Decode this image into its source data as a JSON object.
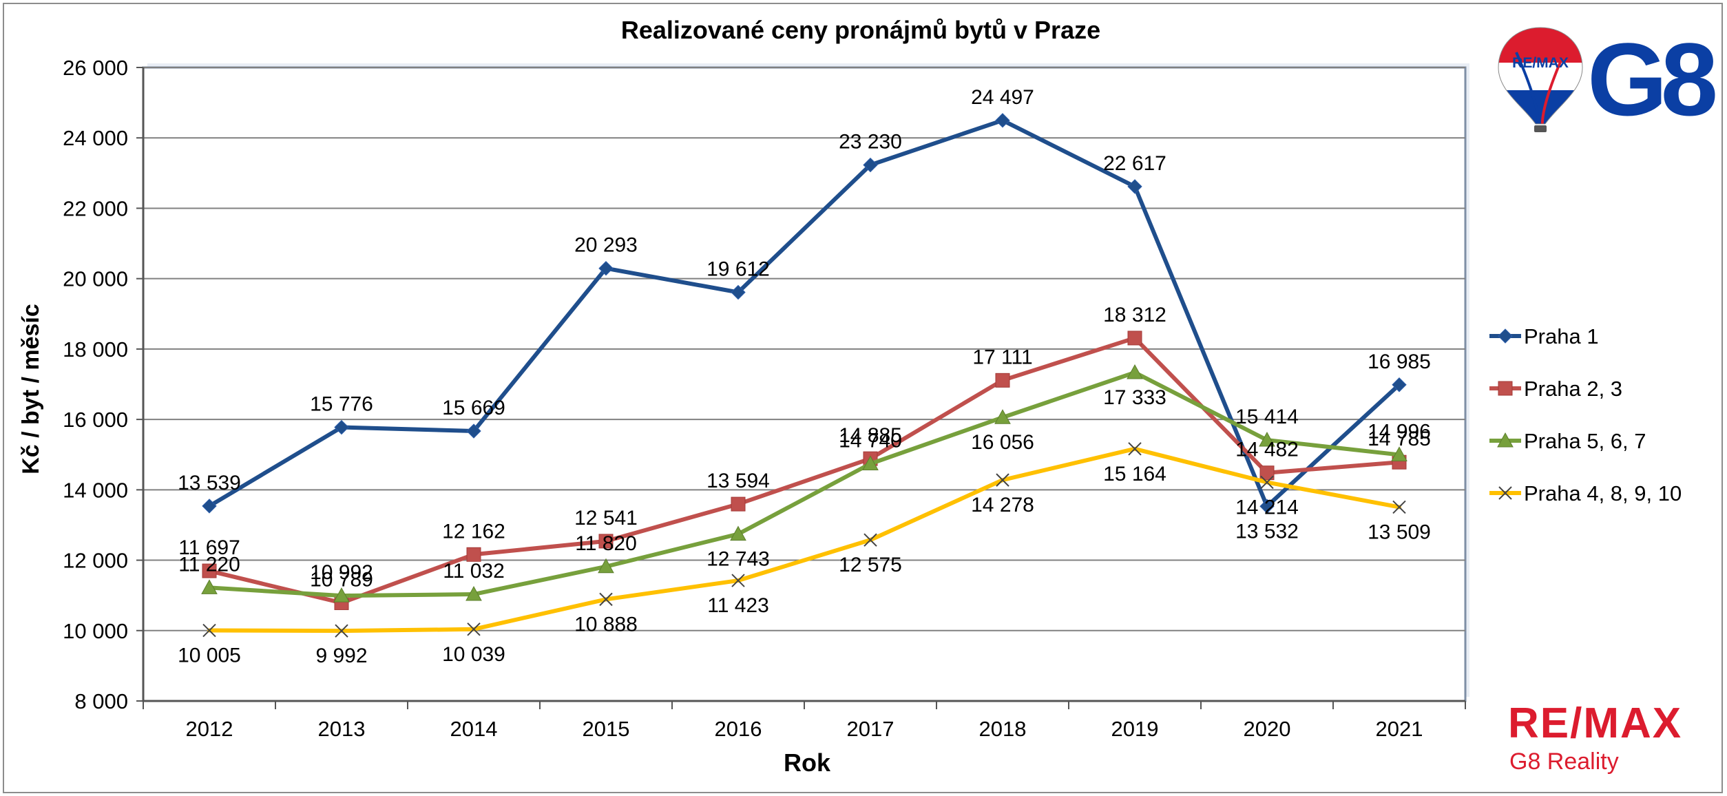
{
  "chart_data": {
    "type": "line",
    "title": "Realizované ceny pronájmů bytů v Praze",
    "xlabel": "Rok",
    "ylabel": "Kč / byt / měsíc",
    "ylim": [
      8000,
      26000
    ],
    "yticks": [
      8000,
      10000,
      12000,
      14000,
      16000,
      18000,
      20000,
      22000,
      24000,
      26000
    ],
    "ytick_labels": [
      "8 000",
      "10 000",
      "12 000",
      "14 000",
      "16 000",
      "18 000",
      "20 000",
      "22 000",
      "24 000",
      "26 000"
    ],
    "categories": [
      "2012",
      "2013",
      "2014",
      "2015",
      "2016",
      "2017",
      "2018",
      "2019",
      "2020",
      "2021"
    ],
    "grid": true,
    "legend_position": "right",
    "series": [
      {
        "name": "Praha 1",
        "color": "#1f4e8c",
        "marker": "diamond",
        "values": [
          13539,
          15776,
          15669,
          20293,
          19612,
          23230,
          24497,
          22617,
          13532,
          16985
        ],
        "labels": [
          "13 539",
          "15 776",
          "15 669",
          "20 293",
          "19 612",
          "23 230",
          "24 497",
          "22 617",
          "13 532",
          "16 985"
        ]
      },
      {
        "name": "Praha 2, 3",
        "color": "#c0504d",
        "marker": "square",
        "values": [
          11697,
          10789,
          12162,
          12541,
          13594,
          14885,
          17111,
          18312,
          14482,
          14785
        ],
        "labels": [
          "11 697",
          "10 789",
          "12 162",
          "12 541",
          "13 594",
          "14 885",
          "17 111",
          "18 312",
          "14 482",
          "14 785"
        ]
      },
      {
        "name": "Praha 5, 6, 7",
        "color": "#77a03c",
        "marker": "triangle",
        "values": [
          11220,
          10992,
          11032,
          11820,
          12743,
          14740,
          16056,
          17333,
          15414,
          14996
        ],
        "labels": [
          "11 220",
          "10 992",
          "11 032",
          "11 820",
          "12 743",
          "14 740",
          "16 056",
          "17 333",
          "15 414",
          "14 996"
        ]
      },
      {
        "name": "Praha 4, 8, 9, 10",
        "color": "#ffc000",
        "marker": "x",
        "values": [
          10005,
          9992,
          10039,
          10888,
          11423,
          12575,
          14278,
          15164,
          14214,
          13509
        ],
        "labels": [
          "10 005",
          "9 992",
          "10 039",
          "10 888",
          "11 423",
          "12 575",
          "14 278",
          "15 164",
          "14 214",
          "13 509"
        ]
      }
    ]
  },
  "branding": {
    "logo_text": "G8",
    "balloon_text": "RE/MAX",
    "brand_name": "RE/MAX",
    "brand_sub": "G8 Reality"
  }
}
